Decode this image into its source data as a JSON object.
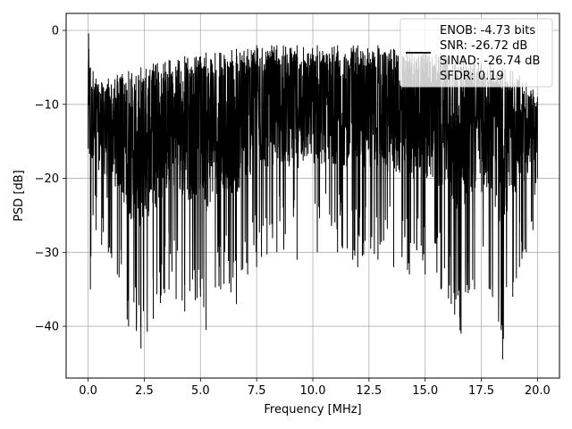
{
  "chart_data": {
    "type": "line",
    "title": "",
    "xlabel": "Frequency [MHz]",
    "ylabel": "PSD [dB]",
    "xlim": [
      -0.98,
      20.98
    ],
    "ylim": [
      -47,
      2.3
    ],
    "xticks": [
      0.0,
      2.5,
      5.0,
      7.5,
      10.0,
      12.5,
      15.0,
      17.5,
      20.0
    ],
    "xtick_labels": [
      "0.0",
      "2.5",
      "5.0",
      "7.5",
      "10.0",
      "12.5",
      "15.0",
      "17.5",
      "20.0"
    ],
    "yticks": [
      0,
      -10,
      -20,
      -30,
      -40
    ],
    "ytick_labels": [
      "0",
      "−10",
      "−20",
      "−30",
      "−40"
    ],
    "grid": true,
    "legend_position": "top-right",
    "series": [
      {
        "color": "#000000",
        "x": [
          0.0,
          0.02,
          0.1,
          0.22,
          0.35,
          0.6,
          0.9,
          1.3,
          1.8,
          2.35,
          2.9,
          3.6,
          4.3,
          5.0,
          5.25,
          5.9,
          6.6,
          7.1,
          7.5,
          8.4,
          9.3,
          10.2,
          11.1,
          12.0,
          12.9,
          13.6,
          14.3,
          15.0,
          15.7,
          16.6,
          17.2,
          17.9,
          18.45,
          18.9,
          19.2,
          19.5,
          19.8,
          20.0
        ],
        "envelope_upper": [
          -9.0,
          -0.4,
          -5.0,
          -5.5,
          -6.5,
          -7.0,
          -6.5,
          -6.0,
          -5.5,
          -5.0,
          -4.5,
          -4.0,
          -3.5,
          -3.5,
          -3.0,
          -3.0,
          -2.5,
          -2.5,
          -2.0,
          -2.0,
          -2.0,
          -2.0,
          -2.0,
          -2.0,
          -2.0,
          -2.5,
          -2.5,
          -3.0,
          -3.0,
          -3.5,
          -4.0,
          -4.5,
          -5.0,
          -5.5,
          -6.0,
          -7.0,
          -8.0,
          -9.0
        ],
        "envelope_lower": [
          -16.0,
          -10.0,
          -35.0,
          -25.0,
          -27.0,
          -29.0,
          -30.0,
          -33.0,
          -40.0,
          -43.0,
          -39.0,
          -35.0,
          -38.0,
          -36.0,
          -40.5,
          -35.0,
          -37.0,
          -33.0,
          -32.0,
          -30.0,
          -31.0,
          -30.0,
          -30.0,
          -32.0,
          -31.0,
          -32.0,
          -33.0,
          -33.0,
          -35.0,
          -41.0,
          -35.0,
          -35.0,
          -44.5,
          -36.0,
          -32.0,
          -30.0,
          -27.0,
          -20.0
        ]
      }
    ],
    "legend_entries": [
      "ENOB: -4.73 bits",
      "SNR: -26.72 dB",
      "SINAD: -26.74 dB",
      "SFDR: 0.19"
    ]
  }
}
